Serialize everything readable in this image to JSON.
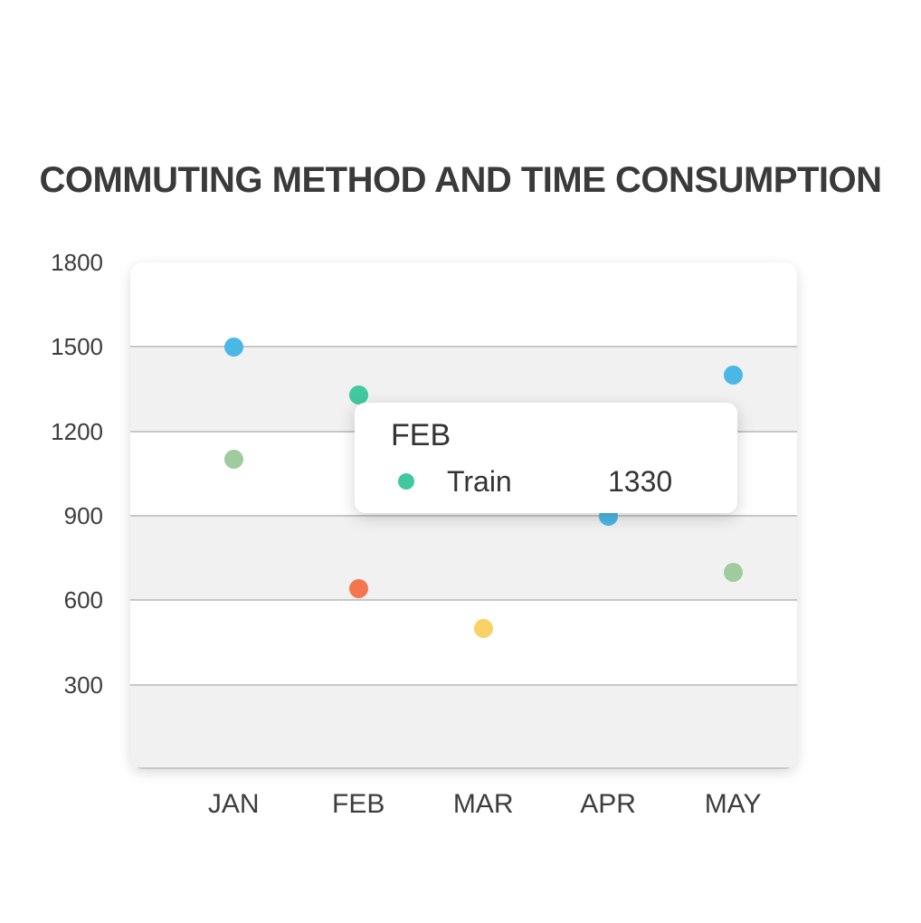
{
  "title": "COMMUTING METHOD AND TIME CONSUMPTION",
  "chart_data": {
    "type": "scatter",
    "title": "COMMUTING METHOD AND TIME CONSUMPTION",
    "categories": [
      "JAN",
      "FEB",
      "MAR",
      "APR",
      "MAY"
    ],
    "xlabel": "",
    "ylabel": "",
    "ylim": [
      0,
      1800
    ],
    "ytick_interval": 300,
    "yticks": [
      300,
      600,
      900,
      1200,
      1500,
      1800
    ],
    "grid": true,
    "gridline_color": "#c7c7c7",
    "plot_bands_alternating": [
      "#ffffff",
      "#f1f1f1"
    ],
    "legend_position": "none",
    "points": [
      {
        "category": "JAN",
        "value": 1500,
        "color": "#4ab8e6"
      },
      {
        "category": "JAN",
        "value": 1100,
        "color": "#9fcb9d"
      },
      {
        "category": "FEB",
        "value": 1330,
        "color": "#41c8a0",
        "series": "Train"
      },
      {
        "category": "FEB",
        "value": 640,
        "color": "#f4764e"
      },
      {
        "category": "MAR",
        "value": 500,
        "color": "#f8d264"
      },
      {
        "category": "APR",
        "value": 900,
        "color": "#4ab8e6"
      },
      {
        "category": "MAY",
        "value": 1400,
        "color": "#4ab8e6"
      },
      {
        "category": "MAY",
        "value": 700,
        "color": "#9fcb9d"
      }
    ]
  },
  "tooltip": {
    "title": "FEB",
    "rows": [
      {
        "series": "Train",
        "value": "1330",
        "color": "#41c8a0"
      }
    ]
  }
}
